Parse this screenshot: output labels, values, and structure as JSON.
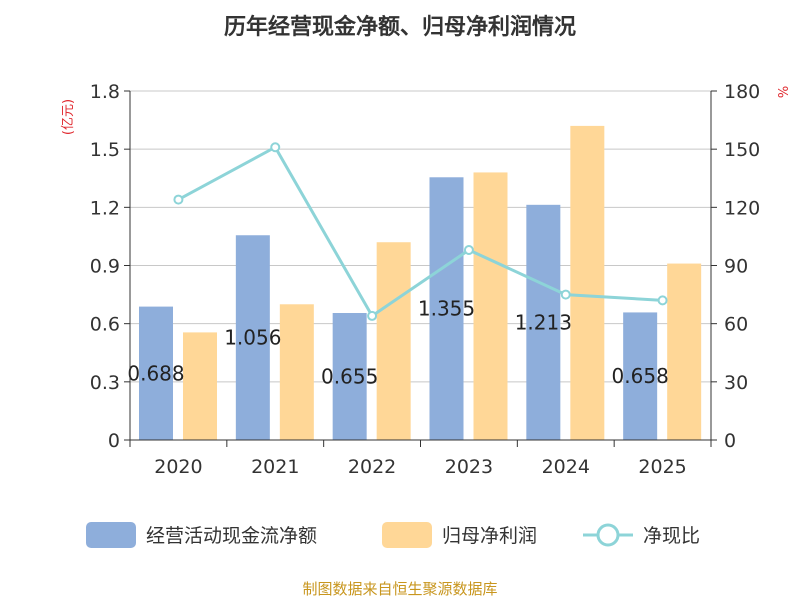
{
  "colors": {
    "operating_cf": "#8EAEDB",
    "net_profit": "#FFD797",
    "ratio_line": "#8DD4D8",
    "left_unit": "#E0282E",
    "right_unit": "#E0282E",
    "source": "#C8961E",
    "grid": "#C8C8C8",
    "axis": "#333333"
  },
  "chart_data": {
    "type": "bar",
    "title": "历年经营现金净额、归母净利润情况",
    "categories": [
      "2020",
      "2021",
      "2022",
      "2023",
      "2024",
      "2025"
    ],
    "y_left": {
      "unit": "(亿元)",
      "range": [
        0,
        1.8
      ],
      "ticks": [
        "0",
        "0.3",
        "0.6",
        "0.9",
        "1.2",
        "1.5",
        "1.8"
      ]
    },
    "y_right": {
      "unit": "%",
      "range": [
        0,
        180
      ],
      "ticks": [
        "0",
        "30",
        "60",
        "90",
        "120",
        "150",
        "180"
      ]
    },
    "grid": true,
    "legend_position": "bottom",
    "series": [
      {
        "name": "经营活动现金流净额",
        "type": "bar",
        "axis": "left",
        "values": [
          0.688,
          1.056,
          0.655,
          1.355,
          1.213,
          0.658
        ],
        "labels": [
          "0.688",
          "1.056",
          "0.655",
          "1.355",
          "1.213",
          "0.658"
        ]
      },
      {
        "name": "归母净利润",
        "type": "bar",
        "axis": "left",
        "values": [
          0.555,
          0.7,
          1.02,
          1.38,
          1.62,
          0.91
        ]
      },
      {
        "name": "净现比",
        "type": "line",
        "axis": "right",
        "values": [
          124,
          151,
          64,
          98,
          75,
          72
        ]
      }
    ]
  },
  "source_note": "制图数据来自恒生聚源数据库"
}
